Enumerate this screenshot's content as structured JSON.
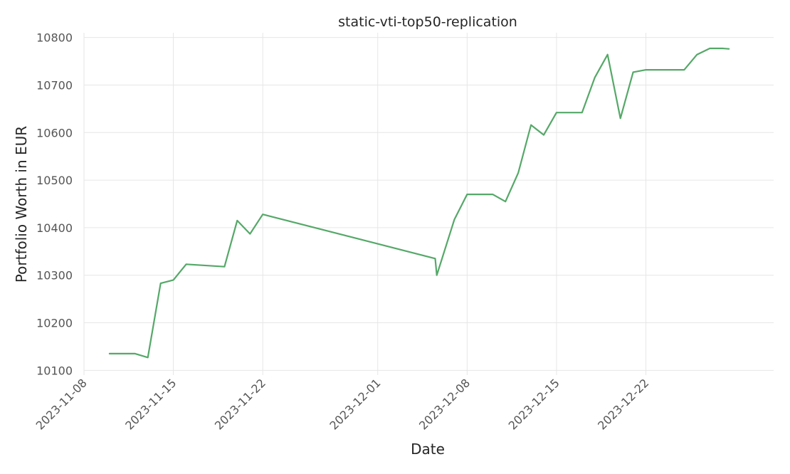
{
  "chart_data": {
    "type": "line",
    "title": "static-vti-top50-replication",
    "xlabel": "Date",
    "ylabel": "Portfolio Worth in EUR",
    "x_ticks": [
      "2023-11-08",
      "2023-11-15",
      "2023-11-22",
      "2023-12-01",
      "2023-12-08",
      "2023-12-15",
      "2023-12-22"
    ],
    "y_ticks": [
      10100,
      10200,
      10300,
      10400,
      10500,
      10600,
      10700,
      10800
    ],
    "xlim": [
      "2023-11-08",
      "2024-01-01"
    ],
    "ylim": [
      10090,
      10810
    ],
    "grid": true,
    "series": [
      {
        "color": "#55a868",
        "points": [
          {
            "x": "2023-11-10T00:00",
            "y": 10135
          },
          {
            "x": "2023-11-12T00:00",
            "y": 10135
          },
          {
            "x": "2023-11-13T00:00",
            "y": 10127
          },
          {
            "x": "2023-11-14T00:00",
            "y": 10283
          },
          {
            "x": "2023-11-15T00:00",
            "y": 10290
          },
          {
            "x": "2023-11-16T00:00",
            "y": 10323
          },
          {
            "x": "2023-11-19T00:00",
            "y": 10318
          },
          {
            "x": "2023-11-20T00:00",
            "y": 10415
          },
          {
            "x": "2023-11-21T00:00",
            "y": 10387
          },
          {
            "x": "2023-11-22T00:00",
            "y": 10428
          },
          {
            "x": "2023-12-05T12:00",
            "y": 10335
          },
          {
            "x": "2023-12-05T15:00",
            "y": 10300
          },
          {
            "x": "2023-12-07T00:00",
            "y": 10417
          },
          {
            "x": "2023-12-08T00:00",
            "y": 10470
          },
          {
            "x": "2023-12-10T00:00",
            "y": 10470
          },
          {
            "x": "2023-12-11T00:00",
            "y": 10455
          },
          {
            "x": "2023-12-12T00:00",
            "y": 10515
          },
          {
            "x": "2023-12-13T00:00",
            "y": 10616
          },
          {
            "x": "2023-12-14T00:00",
            "y": 10595
          },
          {
            "x": "2023-12-15T00:00",
            "y": 10642
          },
          {
            "x": "2023-12-17T00:00",
            "y": 10642
          },
          {
            "x": "2023-12-18T00:00",
            "y": 10716
          },
          {
            "x": "2023-12-19T00:00",
            "y": 10764
          },
          {
            "x": "2023-12-20T00:00",
            "y": 10630
          },
          {
            "x": "2023-12-21T00:00",
            "y": 10727
          },
          {
            "x": "2023-12-22T00:00",
            "y": 10732
          },
          {
            "x": "2023-12-25T00:00",
            "y": 10732
          },
          {
            "x": "2023-12-26T00:00",
            "y": 10764
          },
          {
            "x": "2023-12-27T00:00",
            "y": 10777
          },
          {
            "x": "2023-12-28T00:00",
            "y": 10777
          },
          {
            "x": "2023-12-28T12:00",
            "y": 10776
          }
        ]
      }
    ]
  }
}
